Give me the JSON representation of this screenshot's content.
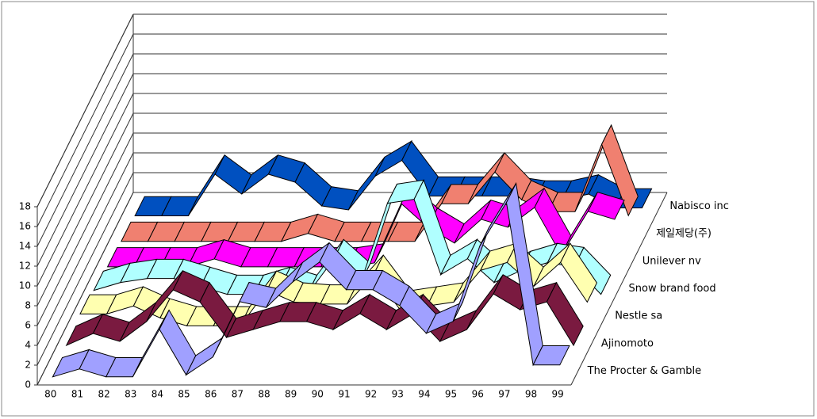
{
  "chart_data": {
    "type": "line3d",
    "categories": [
      "80",
      "81",
      "82",
      "83",
      "84",
      "85",
      "86",
      "87",
      "88",
      "89",
      "90",
      "91",
      "92",
      "93",
      "94",
      "95",
      "96",
      "97",
      "98",
      "99"
    ],
    "ylim": [
      0,
      18
    ],
    "yticks": [
      0,
      2,
      4,
      6,
      8,
      10,
      12,
      14,
      16,
      18
    ],
    "grid": true,
    "series": [
      {
        "name": "The Procter & Gamble",
        "color": "#a0a0ff",
        "values": [
          0.4,
          1.2,
          0.4,
          0.4,
          5.2,
          0.6,
          2.4,
          8,
          7.4,
          10,
          12,
          9.2,
          9.2,
          7.6,
          4.8,
          6,
          13.6,
          18,
          1.6,
          1.6
        ]
      },
      {
        "name": "Ajinomoto",
        "color": "#7a1a40",
        "values": [
          0.8,
          2,
          1.2,
          3.2,
          6.4,
          5.2,
          1.6,
          2.4,
          3.2,
          3.2,
          2.4,
          4,
          2.4,
          4,
          1.2,
          2.4,
          6,
          4.4,
          5.2,
          0.8
        ]
      },
      {
        "name": "Nestle sa",
        "color": "#ffffb0",
        "values": [
          1.2,
          1.2,
          2,
          0.8,
          0,
          0,
          0,
          3.6,
          2.4,
          2.2,
          2.2,
          5.2,
          1.6,
          2,
          2.4,
          5.6,
          6.4,
          4,
          6.4,
          2.4
        ]
      },
      {
        "name": "Snow brand food",
        "color": "#b0ffff",
        "values": [
          0.8,
          1.6,
          2,
          2,
          1.2,
          0.4,
          0.4,
          1.2,
          0.4,
          4,
          1.6,
          9.6,
          10,
          2.4,
          4,
          1.6,
          2.8,
          3.6,
          3.2,
          0.4
        ]
      },
      {
        "name": "Unilever nv",
        "color": "#ff00ff",
        "values": [
          0.4,
          0.4,
          0.4,
          0.4,
          1.2,
          0.4,
          0.4,
          0.4,
          0.4,
          0.4,
          0.8,
          6.8,
          4.4,
          2.8,
          5.2,
          4.4,
          6.4,
          1.6,
          6,
          5.2
        ]
      },
      {
        "name": "제일제당(주)",
        "color": "#f08070",
        "values": [
          0.2,
          0.2,
          0.2,
          0.2,
          0.2,
          0.2,
          0.2,
          1,
          0.2,
          0.2,
          0.2,
          0.2,
          4,
          4,
          7.2,
          4.4,
          3.2,
          3.2,
          10,
          2.8
        ]
      },
      {
        "name": "Nabisco inc",
        "color": "#0050c0",
        "values": [
          0,
          0,
          0,
          4.2,
          2.2,
          4.2,
          3.4,
          1,
          0.6,
          4,
          5.6,
          2,
          2,
          2,
          2,
          1.6,
          1.6,
          2.2,
          0.8,
          0.8
        ]
      }
    ]
  }
}
